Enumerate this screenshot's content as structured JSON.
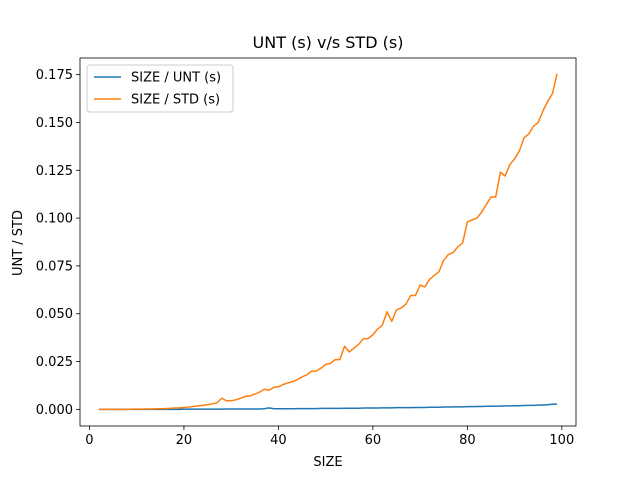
{
  "chart_data": {
    "type": "line",
    "title": "UNT (s) v/s STD (s)",
    "xlabel": "SIZE",
    "ylabel": "UNT / STD",
    "xlim": [
      -2,
      103
    ],
    "ylim": [
      -0.0087,
      0.1837
    ],
    "x_ticks": [
      0,
      20,
      40,
      60,
      80,
      100
    ],
    "x_tick_labels": [
      "0",
      "20",
      "40",
      "60",
      "80",
      "100"
    ],
    "y_ticks": [
      0.0,
      0.025,
      0.05,
      0.075,
      0.1,
      0.125,
      0.15,
      0.175
    ],
    "y_tick_labels": [
      "0.000",
      "0.025",
      "0.050",
      "0.075",
      "0.100",
      "0.125",
      "0.150",
      "0.175"
    ],
    "grid": false,
    "legend_position": "upper-left",
    "colors": {
      "unt": "#1f77b4",
      "std": "#ff7f0e"
    },
    "x": [
      2,
      3,
      4,
      5,
      6,
      7,
      8,
      9,
      10,
      11,
      12,
      13,
      14,
      15,
      16,
      17,
      18,
      19,
      20,
      21,
      22,
      23,
      24,
      25,
      26,
      27,
      28,
      29,
      30,
      31,
      32,
      33,
      34,
      35,
      36,
      37,
      38,
      39,
      40,
      41,
      42,
      43,
      44,
      45,
      46,
      47,
      48,
      49,
      50,
      51,
      52,
      53,
      54,
      55,
      56,
      57,
      58,
      59,
      60,
      61,
      62,
      63,
      64,
      65,
      66,
      67,
      68,
      69,
      70,
      71,
      72,
      73,
      74,
      75,
      76,
      77,
      78,
      79,
      80,
      81,
      82,
      83,
      84,
      85,
      86,
      87,
      88,
      89,
      90,
      91,
      92,
      93,
      94,
      95,
      96,
      97,
      98,
      99
    ],
    "series": [
      {
        "name": "SIZE / UNT (s)",
        "color": "#1f77b4",
        "values": [
          0.0,
          0.0,
          0.0,
          0.0,
          0.0,
          0.0,
          0.0,
          0.0,
          0.0,
          0.0,
          0.0,
          0.0,
          0.0,
          0.0,
          0.0,
          0.0,
          0.0,
          0.0,
          0.0001,
          0.0001,
          0.0001,
          0.0001,
          0.0001,
          0.0001,
          0.0001,
          0.0001,
          0.0001,
          0.0002,
          0.0002,
          0.0002,
          0.0002,
          0.0002,
          0.0002,
          0.0002,
          0.0002,
          0.0003,
          0.0008,
          0.0003,
          0.0003,
          0.0003,
          0.0003,
          0.0003,
          0.0004,
          0.0004,
          0.0004,
          0.0004,
          0.0004,
          0.0005,
          0.0005,
          0.0005,
          0.0005,
          0.0005,
          0.0006,
          0.0006,
          0.0006,
          0.0006,
          0.0007,
          0.0007,
          0.0007,
          0.0007,
          0.0008,
          0.0008,
          0.0008,
          0.0009,
          0.0009,
          0.0009,
          0.0009,
          0.001,
          0.001,
          0.001,
          0.0011,
          0.0011,
          0.0011,
          0.0012,
          0.0012,
          0.0013,
          0.0013,
          0.0013,
          0.0014,
          0.0014,
          0.0015,
          0.0015,
          0.0016,
          0.0016,
          0.0017,
          0.0017,
          0.0018,
          0.0018,
          0.0019,
          0.0019,
          0.002,
          0.0021,
          0.0021,
          0.0022,
          0.0023,
          0.0024,
          0.0027,
          0.0028
        ]
      },
      {
        "name": "SIZE / STD (s)",
        "color": "#ff7f0e",
        "values": [
          0.0,
          0.0,
          0.0,
          0.0,
          0.0,
          0.0,
          0.0,
          0.0001,
          0.0001,
          0.0001,
          0.0002,
          0.0002,
          0.0003,
          0.0003,
          0.0004,
          0.0005,
          0.0007,
          0.0008,
          0.001,
          0.0012,
          0.0015,
          0.0018,
          0.0021,
          0.0025,
          0.0029,
          0.0034,
          0.0058,
          0.0045,
          0.0045,
          0.005,
          0.0058,
          0.0068,
          0.007,
          0.008,
          0.009,
          0.0105,
          0.01,
          0.0115,
          0.0118,
          0.013,
          0.0138,
          0.0145,
          0.0155,
          0.017,
          0.018,
          0.02,
          0.02,
          0.0215,
          0.0235,
          0.024,
          0.026,
          0.026,
          0.033,
          0.03,
          0.032,
          0.034,
          0.037,
          0.037,
          0.039,
          0.042,
          0.044,
          0.051,
          0.046,
          0.052,
          0.053,
          0.055,
          0.0595,
          0.0595,
          0.065,
          0.064,
          0.068,
          0.07,
          0.072,
          0.078,
          0.081,
          0.082,
          0.085,
          0.087,
          0.098,
          0.099,
          0.1,
          0.103,
          0.107,
          0.111,
          0.111,
          0.124,
          0.122,
          0.128,
          0.131,
          0.135,
          0.142,
          0.144,
          0.148,
          0.15,
          0.156,
          0.161,
          0.165,
          0.1755
        ]
      }
    ]
  }
}
